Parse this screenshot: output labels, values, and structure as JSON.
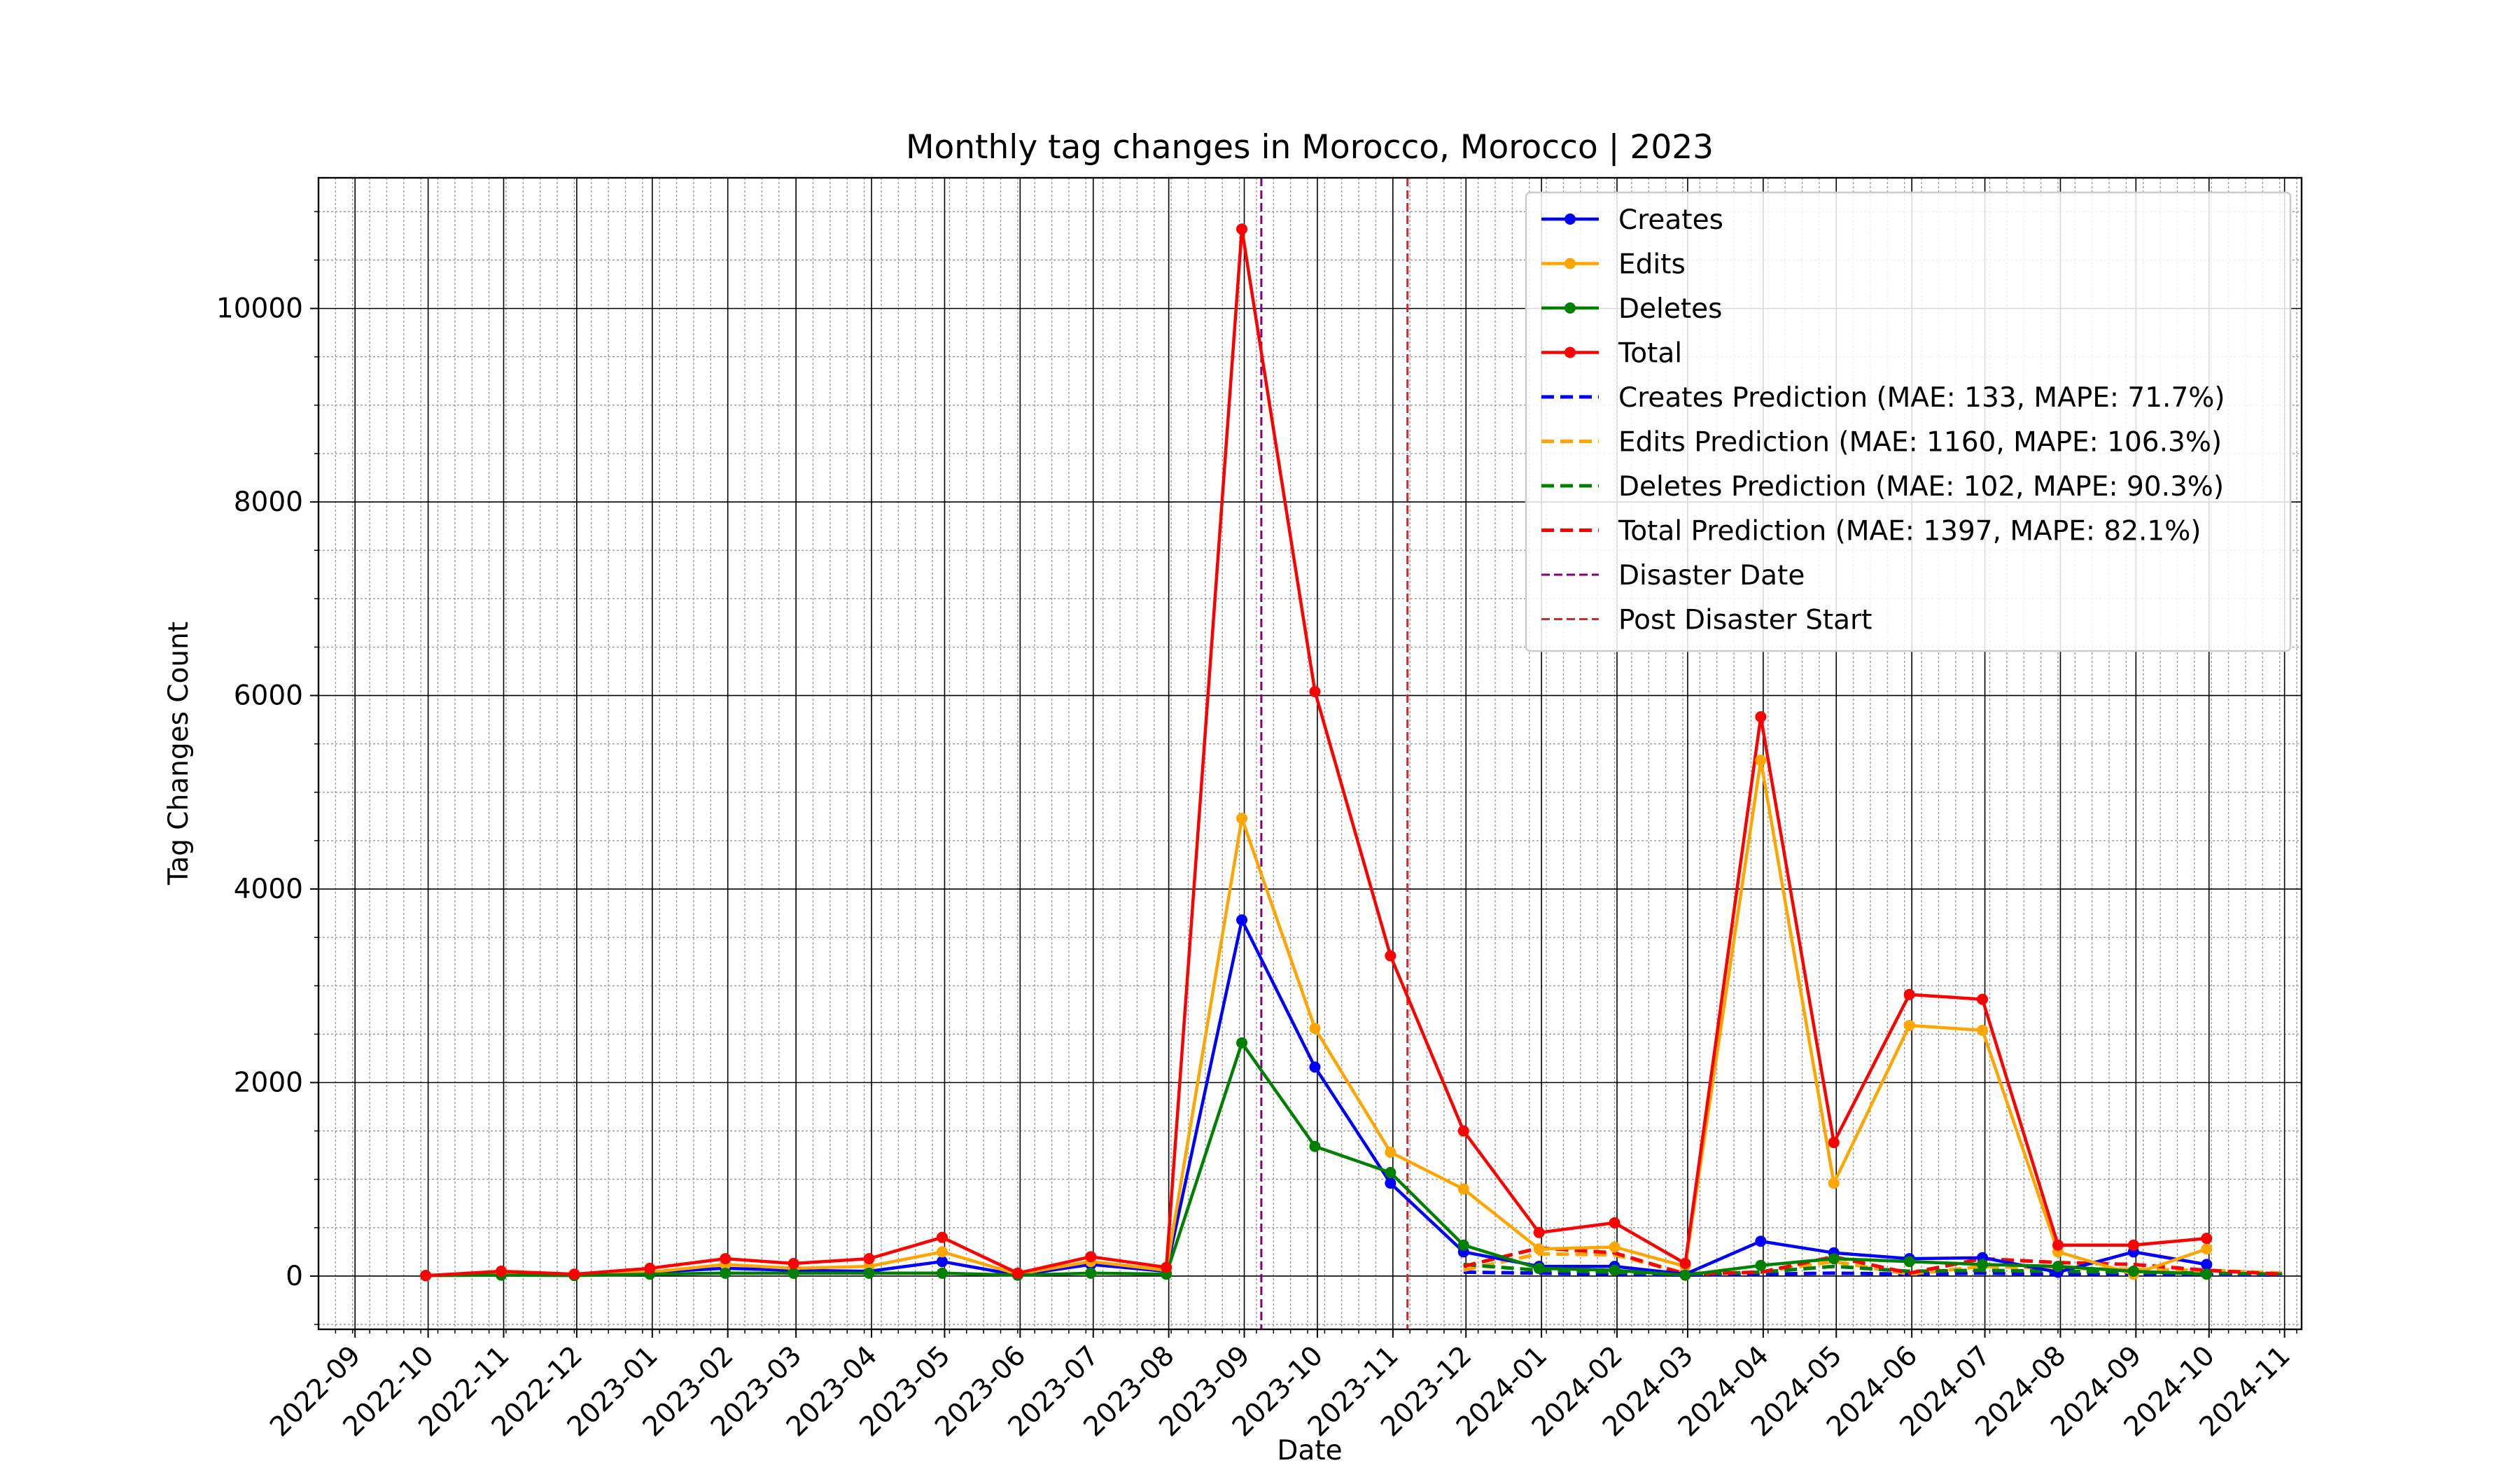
{
  "chart_data": {
    "type": "line",
    "title": "Monthly tag changes in Morocco, Morocco | 2023",
    "xlabel": "Date",
    "ylabel": "Tag Changes Count",
    "ylim": [
      -550,
      11350
    ],
    "xlim": [
      "2022-08-17",
      "2024-11-08"
    ],
    "grid": true,
    "legend_position": "top-right",
    "yticks": [
      0,
      2000,
      4000,
      6000,
      8000,
      10000
    ],
    "xticks": [
      "2022-09",
      "2022-10",
      "2022-11",
      "2022-12",
      "2023-01",
      "2023-02",
      "2023-03",
      "2023-04",
      "2023-05",
      "2023-06",
      "2023-07",
      "2023-08",
      "2023-09",
      "2023-10",
      "2023-11",
      "2023-12",
      "2024-01",
      "2024-02",
      "2024-03",
      "2024-04",
      "2024-05",
      "2024-06",
      "2024-07",
      "2024-08",
      "2024-09",
      "2024-10",
      "2024-11"
    ],
    "x": [
      "2022-09-30",
      "2022-10-31",
      "2022-11-30",
      "2022-12-31",
      "2023-01-31",
      "2023-02-28",
      "2023-03-31",
      "2023-04-30",
      "2023-05-31",
      "2023-06-30",
      "2023-07-31",
      "2023-08-31",
      "2023-09-30",
      "2023-10-31",
      "2023-11-30",
      "2023-12-31",
      "2024-01-31",
      "2024-02-29",
      "2024-03-31",
      "2024-04-30",
      "2024-05-31",
      "2024-06-30",
      "2024-07-31",
      "2024-08-31",
      "2024-09-30"
    ],
    "series": [
      {
        "name": "Creates",
        "color": "#0000ff",
        "style": "solid-marker",
        "values": [
          5,
          20,
          10,
          40,
          80,
          60,
          50,
          150,
          10,
          120,
          50,
          3680,
          2160,
          960,
          250,
          100,
          100,
          20,
          360,
          240,
          180,
          190,
          40,
          250,
          120
        ]
      },
      {
        "name": "Edits",
        "color": "#ffa500",
        "style": "solid-marker",
        "values": [
          5,
          30,
          10,
          40,
          120,
          80,
          100,
          250,
          20,
          150,
          60,
          4730,
          2560,
          1280,
          900,
          280,
          300,
          100,
          5330,
          960,
          2590,
          2540,
          250,
          20,
          280
        ]
      },
      {
        "name": "Deletes",
        "color": "#008000",
        "style": "solid-marker",
        "values": [
          5,
          10,
          5,
          20,
          30,
          30,
          30,
          30,
          10,
          30,
          20,
          2410,
          1340,
          1070,
          320,
          80,
          60,
          10,
          110,
          180,
          150,
          120,
          100,
          50,
          20
        ]
      },
      {
        "name": "Total",
        "color": "#ff0000",
        "style": "solid-marker",
        "values": [
          5,
          50,
          20,
          80,
          180,
          130,
          180,
          400,
          30,
          200,
          90,
          10820,
          6040,
          3310,
          1500,
          450,
          550,
          130,
          5780,
          1380,
          2910,
          2860,
          320,
          320,
          390
        ]
      }
    ],
    "predictions": {
      "x": [
        "2023-11-30",
        "2023-12-31",
        "2024-01-31",
        "2024-02-29",
        "2024-03-31",
        "2024-04-30",
        "2024-05-31",
        "2024-06-30",
        "2024-07-31",
        "2024-08-31",
        "2024-09-30",
        "2024-10-31"
      ],
      "series": [
        {
          "name": "Creates Prediction (MAE: 133, MAPE: 71.7%)",
          "color": "#0000ff",
          "style": "dashed",
          "values": [
            40,
            30,
            20,
            10,
            20,
            30,
            20,
            30,
            20,
            20,
            15,
            10
          ]
        },
        {
          "name": "Edits Prediction (MAE: 1160, MAPE: 106.3%)",
          "color": "#ffa500",
          "style": "dashed",
          "values": [
            60,
            230,
            220,
            30,
            40,
            150,
            20,
            100,
            80,
            70,
            60,
            30
          ]
        },
        {
          "name": "Deletes Prediction (MAE: 102, MAPE: 90.3%)",
          "color": "#008000",
          "style": "dashed",
          "values": [
            120,
            60,
            40,
            20,
            40,
            100,
            50,
            60,
            50,
            40,
            30,
            20
          ]
        },
        {
          "name": "Total Prediction (MAE: 1397, MAPE: 82.1%)",
          "color": "#ff0000",
          "style": "dashed",
          "values": [
            100,
            290,
            240,
            20,
            40,
            200,
            30,
            180,
            140,
            120,
            60,
            20
          ]
        }
      ]
    },
    "vlines": [
      {
        "name": "Disaster Date",
        "x": "2023-09-08",
        "color": "#800080"
      },
      {
        "name": "Post Disaster Start",
        "x": "2023-11-07",
        "color": "#d62728"
      }
    ]
  }
}
